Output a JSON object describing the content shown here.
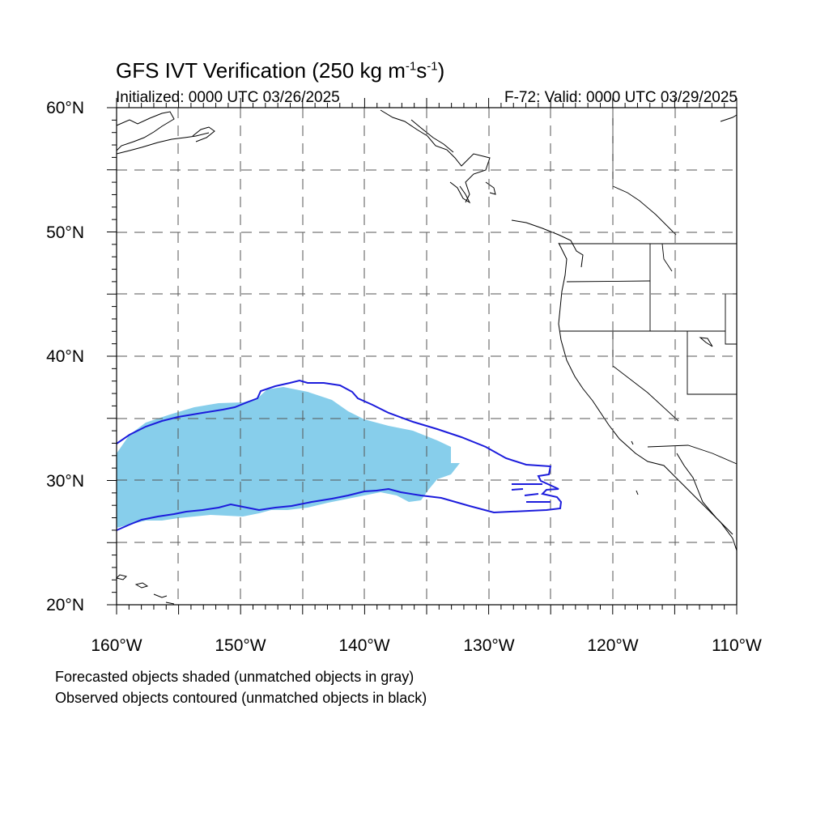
{
  "header": {
    "title_main": "GFS IVT Verification (250 kg m",
    "title_exp1": "-1",
    "title_mid": "s",
    "title_exp2": "-1",
    "title_end": ")",
    "initialized": "Initialized: 0000 UTC 03/26/2025",
    "valid": "F-72: Valid: 0000 UTC 03/29/2025"
  },
  "map": {
    "lon_range": [
      -160,
      -110
    ],
    "lat_range": [
      20,
      60
    ],
    "grid": true,
    "lat_labels": [
      {
        "value": 60,
        "text": "60°N"
      },
      {
        "value": 50,
        "text": "50°N"
      },
      {
        "value": 40,
        "text": "40°N"
      },
      {
        "value": 30,
        "text": "30°N"
      },
      {
        "value": 20,
        "text": "20°N"
      }
    ],
    "lon_labels": [
      {
        "value": -160,
        "text": "160°W"
      },
      {
        "value": -150,
        "text": "150°W"
      },
      {
        "value": -140,
        "text": "140°W"
      },
      {
        "value": -130,
        "text": "130°W"
      },
      {
        "value": -120,
        "text": "120°W"
      },
      {
        "value": -110,
        "text": "110°W"
      }
    ],
    "colors": {
      "forecast_fill": "#87ceeb",
      "observed_contour": "#1c1cdc",
      "coastline": "#000000",
      "grid": "#555555"
    }
  },
  "captions": {
    "line1": "Forecasted objects shaded (unmatched objects in gray)",
    "line2": "Observed objects contoured (unmatched objects in black)"
  }
}
